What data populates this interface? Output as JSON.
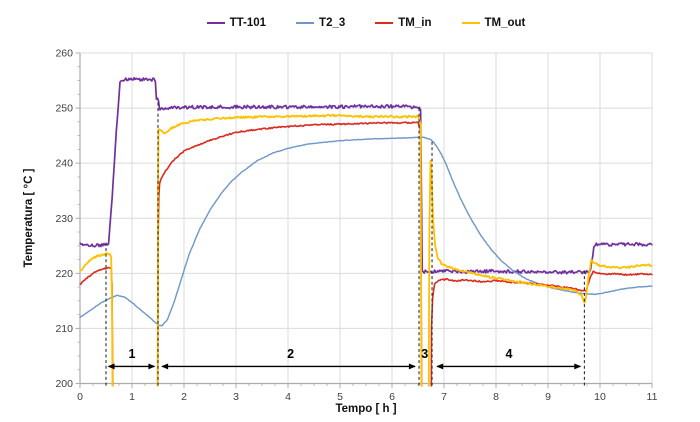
{
  "chart_data": {
    "type": "line",
    "title": "",
    "xlabel": "Tempo [ h ]",
    "ylabel": "Temperatura [ °C ]",
    "xlim": [
      0,
      11
    ],
    "ylim": [
      200,
      260
    ],
    "x_ticks": [
      0,
      1,
      2,
      3,
      4,
      5,
      6,
      7,
      8,
      9,
      10,
      11
    ],
    "y_ticks": [
      200,
      210,
      220,
      230,
      240,
      250,
      260
    ],
    "x_minor_step": 0.25,
    "y_minor_step": 2.5,
    "grid": true,
    "legend_position": "top-center",
    "colors": {
      "grid": "#DBDBDB",
      "axis": "#ACACAC",
      "tick_text": "#3F3F3F",
      "annotation": "#2D2D2D",
      "background": "#FFFFFF"
    },
    "series": [
      {
        "name": "TT-101",
        "color": "#7030A0",
        "stroke_width": 1.7,
        "noise": 0.3,
        "segments": [
          [
            [
              0,
              225.2
            ],
            [
              0.25,
              225.1
            ],
            [
              0.5,
              225.1
            ],
            [
              0.55,
              225.2
            ],
            [
              0.62,
              234
            ],
            [
              0.7,
              246
            ],
            [
              0.77,
              254.5
            ],
            [
              0.82,
              255.2
            ],
            [
              1.0,
              255.3
            ],
            [
              1.2,
              255.2
            ],
            [
              1.42,
              255.2
            ],
            [
              1.45,
              254.6
            ],
            [
              1.47,
              251.7
            ],
            [
              1.51,
              251.4
            ],
            [
              1.53,
              249.9
            ],
            [
              1.58,
              249.8
            ],
            [
              1.7,
              250.1
            ],
            [
              2.5,
              250.2
            ],
            [
              3.5,
              250.2
            ],
            [
              4.5,
              250.2
            ],
            [
              5.5,
              250.3
            ],
            [
              6.2,
              250.3
            ],
            [
              6.5,
              250.2
            ],
            [
              6.55,
              249.5
            ],
            [
              6.58,
              220.6
            ],
            [
              6.62,
              220.3
            ],
            [
              7.0,
              220.4
            ],
            [
              7.5,
              220.3
            ],
            [
              8.0,
              220.4
            ],
            [
              8.5,
              220.3
            ],
            [
              9.0,
              220.2
            ],
            [
              9.4,
              220.2
            ],
            [
              9.78,
              220.2
            ],
            [
              9.82,
              220.6
            ],
            [
              9.88,
              224.6
            ],
            [
              9.93,
              225.2
            ],
            [
              10.2,
              225.2
            ],
            [
              10.6,
              225.3
            ],
            [
              11,
              225.2
            ]
          ]
        ]
      },
      {
        "name": "T2_3",
        "color": "#6D97C9",
        "stroke_width": 1.4,
        "noise": 0.05,
        "segments": [
          [
            [
              0,
              212.0
            ],
            [
              0.2,
              213.3
            ],
            [
              0.4,
              214.6
            ],
            [
              0.6,
              215.6
            ],
            [
              0.72,
              216.0
            ],
            [
              0.85,
              215.7
            ],
            [
              1.0,
              214.7
            ],
            [
              1.2,
              213.1
            ],
            [
              1.35,
              211.9
            ],
            [
              1.5,
              210.6
            ],
            [
              1.58,
              210.5
            ],
            [
              1.68,
              211.6
            ],
            [
              1.8,
              214.5
            ],
            [
              1.95,
              219
            ],
            [
              2.1,
              223.5
            ],
            [
              2.3,
              228
            ],
            [
              2.5,
              231.5
            ],
            [
              2.7,
              234.3
            ],
            [
              2.9,
              236.6
            ],
            [
              3.1,
              238.3
            ],
            [
              3.4,
              240.4
            ],
            [
              3.7,
              241.8
            ],
            [
              4.0,
              242.7
            ],
            [
              4.4,
              243.5
            ],
            [
              4.8,
              243.9
            ],
            [
              5.2,
              244.2
            ],
            [
              5.6,
              244.4
            ],
            [
              6.0,
              244.5
            ],
            [
              6.3,
              244.6
            ],
            [
              6.6,
              244.7
            ],
            [
              6.75,
              244.3
            ],
            [
              6.85,
              243.2
            ],
            [
              6.95,
              241.6
            ],
            [
              7.05,
              239.6
            ],
            [
              7.15,
              237.2
            ],
            [
              7.3,
              233.9
            ],
            [
              7.5,
              230.2
            ],
            [
              7.7,
              227.0
            ],
            [
              7.9,
              224.4
            ],
            [
              8.1,
              222.3
            ],
            [
              8.35,
              220.3
            ],
            [
              8.6,
              218.9
            ],
            [
              8.85,
              218.0
            ],
            [
              9.1,
              217.3
            ],
            [
              9.4,
              216.7
            ],
            [
              9.7,
              216.3
            ],
            [
              9.9,
              216.2
            ],
            [
              10.1,
              216.5
            ],
            [
              10.4,
              217.1
            ],
            [
              10.7,
              217.5
            ],
            [
              11,
              217.7
            ]
          ]
        ]
      },
      {
        "name": "TM_in",
        "color": "#DD2A1E",
        "stroke_width": 1.6,
        "noise": 0.12,
        "segments": [
          [
            [
              0,
              218.0
            ],
            [
              0.15,
              219.3
            ],
            [
              0.3,
              220.3
            ],
            [
              0.45,
              220.8
            ],
            [
              0.55,
              221.0
            ],
            [
              0.6,
              220.9
            ],
            [
              0.615,
              218
            ],
            [
              0.63,
              199
            ]
          ],
          [
            [
              1.495,
              199
            ],
            [
              1.5,
              225
            ],
            [
              1.515,
              234
            ],
            [
              1.53,
              236.2
            ],
            [
              1.56,
              237.2
            ],
            [
              1.62,
              238.2
            ],
            [
              1.72,
              239.6
            ],
            [
              1.85,
              241.0
            ],
            [
              2.0,
              242.2
            ],
            [
              2.2,
              243.0
            ],
            [
              2.45,
              244.0
            ],
            [
              2.7,
              244.8
            ],
            [
              3.0,
              245.6
            ],
            [
              3.4,
              246.1
            ],
            [
              3.8,
              246.5
            ],
            [
              4.2,
              246.8
            ],
            [
              4.6,
              247.0
            ],
            [
              5.0,
              247.1
            ],
            [
              5.4,
              247.2
            ],
            [
              5.8,
              247.3
            ],
            [
              6.2,
              247.3
            ],
            [
              6.5,
              247.4
            ],
            [
              6.55,
              246
            ],
            [
              6.57,
              199
            ]
          ],
          [
            [
              6.755,
              199
            ],
            [
              6.76,
              210
            ],
            [
              6.78,
              215.5
            ],
            [
              6.82,
              218.2
            ],
            [
              6.9,
              218.8
            ],
            [
              7.05,
              218.9
            ],
            [
              7.2,
              218.6
            ],
            [
              7.4,
              218.8
            ],
            [
              7.6,
              218.6
            ],
            [
              7.8,
              218.5
            ],
            [
              8.0,
              218.7
            ],
            [
              8.25,
              218.4
            ],
            [
              8.5,
              218.3
            ],
            [
              8.75,
              218.1
            ],
            [
              9.0,
              217.9
            ],
            [
              9.2,
              217.6
            ],
            [
              9.45,
              217.3
            ],
            [
              9.6,
              217.0
            ],
            [
              9.68,
              216.8
            ],
            [
              9.74,
              217.0
            ],
            [
              9.8,
              219.0
            ],
            [
              9.87,
              220.3
            ],
            [
              9.95,
              220.1
            ],
            [
              10.1,
              219.8
            ],
            [
              10.3,
              219.9
            ],
            [
              10.55,
              219.7
            ],
            [
              10.8,
              219.9
            ],
            [
              11,
              219.8
            ]
          ]
        ]
      },
      {
        "name": "TM_out",
        "color": "#FFC000",
        "stroke_width": 1.8,
        "noise": 0.18,
        "segments": [
          [
            [
              0,
              220.4
            ],
            [
              0.1,
              221.5
            ],
            [
              0.2,
              222.4
            ],
            [
              0.3,
              223.0
            ],
            [
              0.42,
              223.4
            ],
            [
              0.52,
              223.5
            ],
            [
              0.58,
              223.4
            ],
            [
              0.6,
              222.8
            ],
            [
              0.615,
              215
            ],
            [
              0.625,
              199
            ]
          ],
          [
            [
              1.495,
              199
            ],
            [
              1.5,
              235
            ],
            [
              1.51,
              246.2
            ],
            [
              1.53,
              246.3
            ],
            [
              1.58,
              245.7
            ],
            [
              1.63,
              245.4
            ],
            [
              1.7,
              245.9
            ],
            [
              1.8,
              246.6
            ],
            [
              1.95,
              247.2
            ],
            [
              2.15,
              247.6
            ],
            [
              2.4,
              247.9
            ],
            [
              2.7,
              248.1
            ],
            [
              3.0,
              248.3
            ],
            [
              3.4,
              248.4
            ],
            [
              3.8,
              248.5
            ],
            [
              4.2,
              248.5
            ],
            [
              4.6,
              248.6
            ],
            [
              5.0,
              248.7
            ],
            [
              5.3,
              248.5
            ],
            [
              5.6,
              248.4
            ],
            [
              5.9,
              248.5
            ],
            [
              6.2,
              248.4
            ],
            [
              6.5,
              248.5
            ],
            [
              6.55,
              247
            ],
            [
              6.565,
              199
            ]
          ],
          [
            [
              6.705,
              199
            ],
            [
              6.72,
              228
            ],
            [
              6.74,
              240.5
            ],
            [
              6.76,
              238
            ],
            [
              6.79,
              230
            ],
            [
              6.83,
              225
            ],
            [
              6.88,
              222.8
            ],
            [
              6.95,
              221.8
            ],
            [
              7.1,
              221.1
            ],
            [
              7.3,
              220.6
            ],
            [
              7.5,
              220.1
            ],
            [
              7.7,
              219.7
            ],
            [
              7.9,
              219.3
            ],
            [
              8.15,
              218.9
            ],
            [
              8.4,
              218.5
            ],
            [
              8.65,
              218.1
            ],
            [
              8.9,
              217.8
            ],
            [
              9.15,
              217.4
            ],
            [
              9.4,
              217.1
            ],
            [
              9.55,
              216.8
            ],
            [
              9.64,
              216.0
            ],
            [
              9.7,
              214.7
            ],
            [
              9.73,
              215.5
            ],
            [
              9.78,
              219.5
            ],
            [
              9.83,
              222.3
            ],
            [
              9.9,
              221.9
            ],
            [
              10.0,
              221.4
            ],
            [
              10.2,
              221.1
            ],
            [
              10.45,
              221.0
            ],
            [
              10.7,
              221.3
            ],
            [
              10.9,
              221.6
            ],
            [
              11,
              221.4
            ]
          ]
        ]
      }
    ],
    "annotations": {
      "dashed_lines": [
        {
          "x": 0.5,
          "y_top": 226
        },
        {
          "x": 1.5,
          "y_top": 251.5
        },
        {
          "x": 6.52,
          "y_top": 250.5
        },
        {
          "x": 6.77,
          "y_top": 244
        },
        {
          "x": 9.7,
          "y_top": 220.5
        }
      ],
      "arrows": [
        {
          "x1": 0.53,
          "x2": 1.45,
          "y": 203.1
        },
        {
          "x1": 1.56,
          "x2": 6.46,
          "y": 203.1
        },
        {
          "x1": 6.85,
          "x2": 9.64,
          "y": 203.1
        }
      ],
      "region_labels": [
        {
          "text": "1",
          "x": 1.0,
          "y": 205.4
        },
        {
          "text": "2",
          "x": 4.05,
          "y": 205.4
        },
        {
          "text": "3",
          "x": 6.63,
          "y": 205.4
        },
        {
          "text": "4",
          "x": 8.25,
          "y": 205.4
        }
      ]
    }
  }
}
